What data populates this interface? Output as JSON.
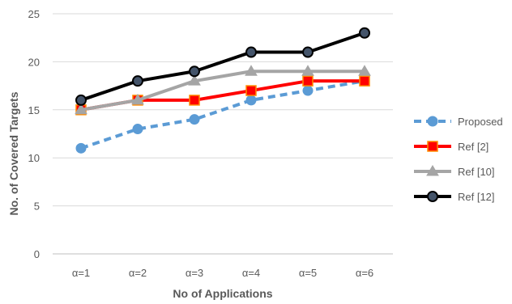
{
  "chart_data": {
    "type": "line",
    "title": "",
    "xlabel": "No of Applications",
    "ylabel": "No. of Covered Targets",
    "categories": [
      "α=1",
      "α=2",
      "α=3",
      "α=4",
      "α=5",
      "α=6"
    ],
    "ylim": [
      0,
      25
    ],
    "yticks": [
      "0",
      "5",
      "10",
      "15",
      "20",
      "25"
    ],
    "grid": true,
    "legend_position": "right",
    "series": [
      {
        "name": "Proposed",
        "values": [
          11,
          13,
          14,
          16,
          17,
          18
        ],
        "color": "#5b9bd5",
        "line_style": "dashed",
        "marker": "circle"
      },
      {
        "name": "Ref [2]",
        "values": [
          15,
          16,
          16,
          17,
          18,
          18
        ],
        "color": "#ff0000",
        "line_style": "solid",
        "marker": "square"
      },
      {
        "name": "Ref [10]",
        "values": [
          15,
          16,
          18,
          19,
          19,
          19
        ],
        "color": "#a5a5a5",
        "line_style": "solid",
        "marker": "triangle"
      },
      {
        "name": "Ref [12]",
        "values": [
          16,
          18,
          19,
          21,
          21,
          23
        ],
        "color": "#000000",
        "line_style": "solid",
        "marker": "circle-dark"
      }
    ]
  }
}
